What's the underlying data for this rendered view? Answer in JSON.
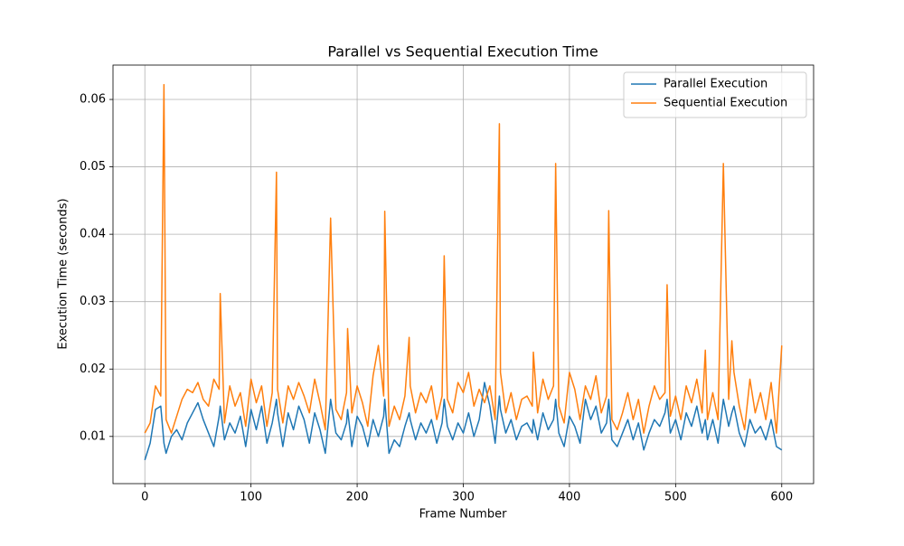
{
  "chart_data": {
    "type": "line",
    "title": "Parallel vs Sequential Execution Time",
    "xlabel": "Frame Number",
    "ylabel": "Execution Time (seconds)",
    "x": [
      0,
      5,
      10,
      15,
      18,
      20,
      25,
      30,
      35,
      40,
      45,
      50,
      55,
      60,
      65,
      70,
      71,
      75,
      80,
      85,
      90,
      95,
      100,
      105,
      110,
      115,
      120,
      124,
      125,
      130,
      135,
      140,
      145,
      150,
      155,
      160,
      165,
      170,
      175,
      180,
      185,
      190,
      191,
      195,
      200,
      205,
      210,
      215,
      220,
      225,
      226,
      230,
      235,
      240,
      245,
      249,
      250,
      255,
      260,
      265,
      270,
      275,
      280,
      282,
      285,
      290,
      295,
      300,
      305,
      310,
      315,
      320,
      325,
      330,
      334,
      335,
      340,
      345,
      350,
      355,
      360,
      365,
      366,
      370,
      375,
      380,
      385,
      387,
      390,
      395,
      400,
      405,
      410,
      415,
      420,
      425,
      430,
      435,
      437,
      440,
      445,
      450,
      455,
      460,
      465,
      470,
      475,
      480,
      485,
      490,
      492,
      495,
      500,
      505,
      510,
      515,
      520,
      525,
      528,
      530,
      535,
      540,
      545,
      550,
      553,
      555,
      560,
      565,
      570,
      575,
      580,
      585,
      590,
      595,
      600
    ],
    "series": [
      {
        "name": "Parallel Execution",
        "color": "#1f77b4",
        "values": [
          0.0065,
          0.009,
          0.014,
          0.0145,
          0.009,
          0.0075,
          0.01,
          0.011,
          0.0095,
          0.012,
          0.0135,
          0.015,
          0.0125,
          0.0105,
          0.0085,
          0.013,
          0.0145,
          0.0095,
          0.012,
          0.0105,
          0.013,
          0.0085,
          0.014,
          0.011,
          0.0145,
          0.009,
          0.012,
          0.0155,
          0.0135,
          0.0085,
          0.0135,
          0.011,
          0.0145,
          0.0125,
          0.009,
          0.0135,
          0.011,
          0.0075,
          0.0155,
          0.0105,
          0.0095,
          0.012,
          0.014,
          0.0085,
          0.013,
          0.0115,
          0.0085,
          0.0125,
          0.01,
          0.013,
          0.0155,
          0.0075,
          0.0095,
          0.0085,
          0.0115,
          0.0135,
          0.0125,
          0.0095,
          0.012,
          0.0105,
          0.0125,
          0.009,
          0.012,
          0.0155,
          0.0115,
          0.0095,
          0.012,
          0.0105,
          0.0135,
          0.01,
          0.0125,
          0.018,
          0.0145,
          0.009,
          0.016,
          0.014,
          0.0105,
          0.0125,
          0.0095,
          0.0115,
          0.012,
          0.0105,
          0.0125,
          0.0095,
          0.0135,
          0.011,
          0.0125,
          0.0155,
          0.0105,
          0.0085,
          0.013,
          0.0115,
          0.009,
          0.0155,
          0.0125,
          0.0145,
          0.0105,
          0.012,
          0.0155,
          0.0095,
          0.0085,
          0.0105,
          0.0125,
          0.0095,
          0.012,
          0.008,
          0.0105,
          0.0125,
          0.0115,
          0.0135,
          0.0155,
          0.0105,
          0.0125,
          0.0095,
          0.0135,
          0.0115,
          0.0145,
          0.0105,
          0.0125,
          0.0095,
          0.0125,
          0.009,
          0.0155,
          0.0115,
          0.0135,
          0.0145,
          0.0105,
          0.0085,
          0.0125,
          0.0105,
          0.0115,
          0.0095,
          0.0125,
          0.0085,
          0.008
        ]
      },
      {
        "name": "Sequential Execution",
        "color": "#ff7f0e",
        "values": [
          0.0105,
          0.012,
          0.0175,
          0.016,
          0.0622,
          0.0125,
          0.0105,
          0.013,
          0.0155,
          0.017,
          0.0165,
          0.018,
          0.0155,
          0.0145,
          0.0185,
          0.017,
          0.0312,
          0.012,
          0.0175,
          0.0145,
          0.0165,
          0.0115,
          0.0185,
          0.015,
          0.0175,
          0.0115,
          0.0165,
          0.0492,
          0.017,
          0.012,
          0.0175,
          0.0155,
          0.018,
          0.016,
          0.0135,
          0.0185,
          0.015,
          0.011,
          0.0424,
          0.014,
          0.0125,
          0.0165,
          0.026,
          0.0135,
          0.0175,
          0.015,
          0.0115,
          0.019,
          0.0235,
          0.016,
          0.0434,
          0.0115,
          0.0145,
          0.0125,
          0.016,
          0.0247,
          0.0175,
          0.0135,
          0.0165,
          0.015,
          0.0175,
          0.0125,
          0.016,
          0.0368,
          0.0155,
          0.0135,
          0.018,
          0.0165,
          0.0195,
          0.0145,
          0.017,
          0.015,
          0.0175,
          0.0125,
          0.0564,
          0.0195,
          0.0135,
          0.0165,
          0.0125,
          0.0155,
          0.016,
          0.0145,
          0.0225,
          0.0135,
          0.0185,
          0.0155,
          0.0175,
          0.0505,
          0.0145,
          0.012,
          0.0195,
          0.017,
          0.0125,
          0.0175,
          0.0155,
          0.019,
          0.0135,
          0.016,
          0.0435,
          0.0125,
          0.011,
          0.0135,
          0.0165,
          0.0125,
          0.0155,
          0.0105,
          0.0145,
          0.0175,
          0.0155,
          0.0165,
          0.0325,
          0.013,
          0.016,
          0.0125,
          0.0175,
          0.015,
          0.0185,
          0.0135,
          0.0228,
          0.0125,
          0.0165,
          0.0125,
          0.0505,
          0.0155,
          0.0242,
          0.0195,
          0.0145,
          0.011,
          0.0185,
          0.0135,
          0.0165,
          0.0125,
          0.018,
          0.0105,
          0.0235
        ]
      }
    ],
    "xlim": [
      -30,
      630
    ],
    "xticks": [
      0,
      100,
      200,
      300,
      400,
      500,
      600
    ],
    "ylim": [
      0.003,
      0.0651
    ],
    "yticks": [
      0.01,
      0.02,
      0.03,
      0.04,
      0.05,
      0.06
    ],
    "grid": true,
    "legend": "upper right"
  }
}
